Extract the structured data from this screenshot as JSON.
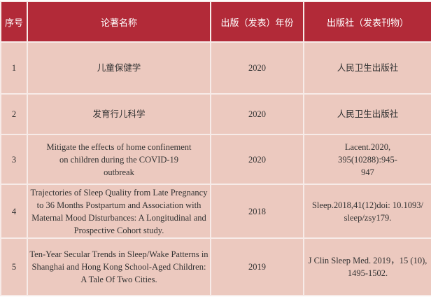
{
  "headers": [
    "序号",
    "论著名称",
    "出版（发表）年份",
    "出版社（发表刊物）"
  ],
  "rows": [
    {
      "no": "1",
      "title": "儿童保健学",
      "year": "2020",
      "publisher": "人民卫生出版社"
    },
    {
      "no": "2",
      "title": "发育行儿科学",
      "year": "2020",
      "publisher": "人民卫生出版社"
    },
    {
      "no": "3",
      "title": "Mitigate the effects of home confinement on children during the COVID-19 outbreak",
      "year": "2020",
      "publisher": "Lacent.2020, 395(10288):945-947"
    },
    {
      "no": "4",
      "title": "Trajectories of Sleep Quality from Late Pregnancy to 36 Months Postpartum and Association with Maternal Mood Disturbances: A Longitudinal and Prospective Cohort study.",
      "year": "2018",
      "publisher": "Sleep.2018,41(12)doi: 10.1093/ sleep/zsy179."
    },
    {
      "no": "5",
      "title": "Ten-Year Secular Trends in Sleep/Wake Patterns in Shanghai and Hong Kong School-Aged Children: A Tale Of Two Cities.",
      "year": "2019",
      "publisher": "J Clin Sleep Med. 2019，15 (10), 1495-1502."
    }
  ]
}
